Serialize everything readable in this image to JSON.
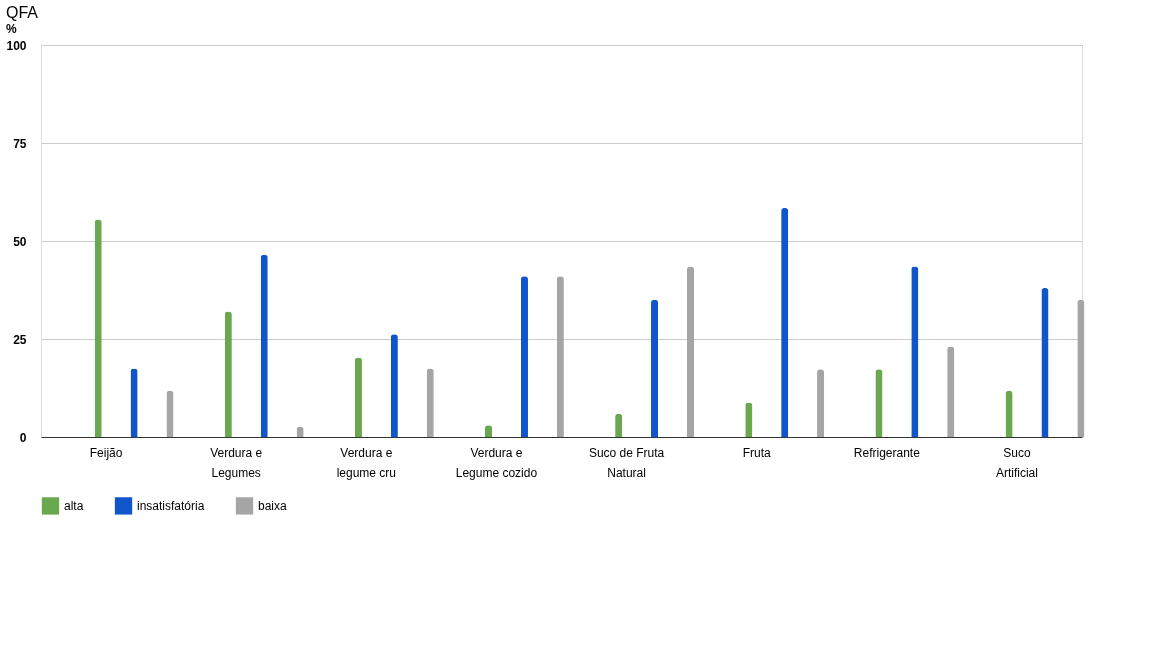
{
  "chart_data": {
    "type": "bar",
    "title": "QFA",
    "ylabel": "%",
    "categories": [
      "Feijão",
      "Verdura e Legumes",
      "Verdura e legume cru",
      "Verdura e Legume cozido",
      "Suco de Fruta Natural",
      "Fruta",
      "Refrigerante",
      "Suco Artificial"
    ],
    "series": [
      {
        "name": "alta",
        "color": "#6aa84f",
        "values": [
          55.5,
          32,
          20.3,
          3,
          5.9,
          8.8,
          17.3,
          11.8
        ]
      },
      {
        "name": "insatisfatória",
        "color": "#1155cc",
        "values": [
          17.5,
          46.5,
          26.2,
          41,
          35,
          58.4,
          43.5,
          38
        ]
      },
      {
        "name": "baixa",
        "color": "#a5a5a5",
        "values": [
          11.8,
          2.6,
          17.5,
          41,
          43.5,
          17.3,
          23.1,
          35
        ]
      }
    ],
    "ylim": [
      0,
      100
    ],
    "yticks": [
      0,
      25,
      50,
      75,
      100
    ],
    "grid": "y",
    "legend": "bottom"
  }
}
